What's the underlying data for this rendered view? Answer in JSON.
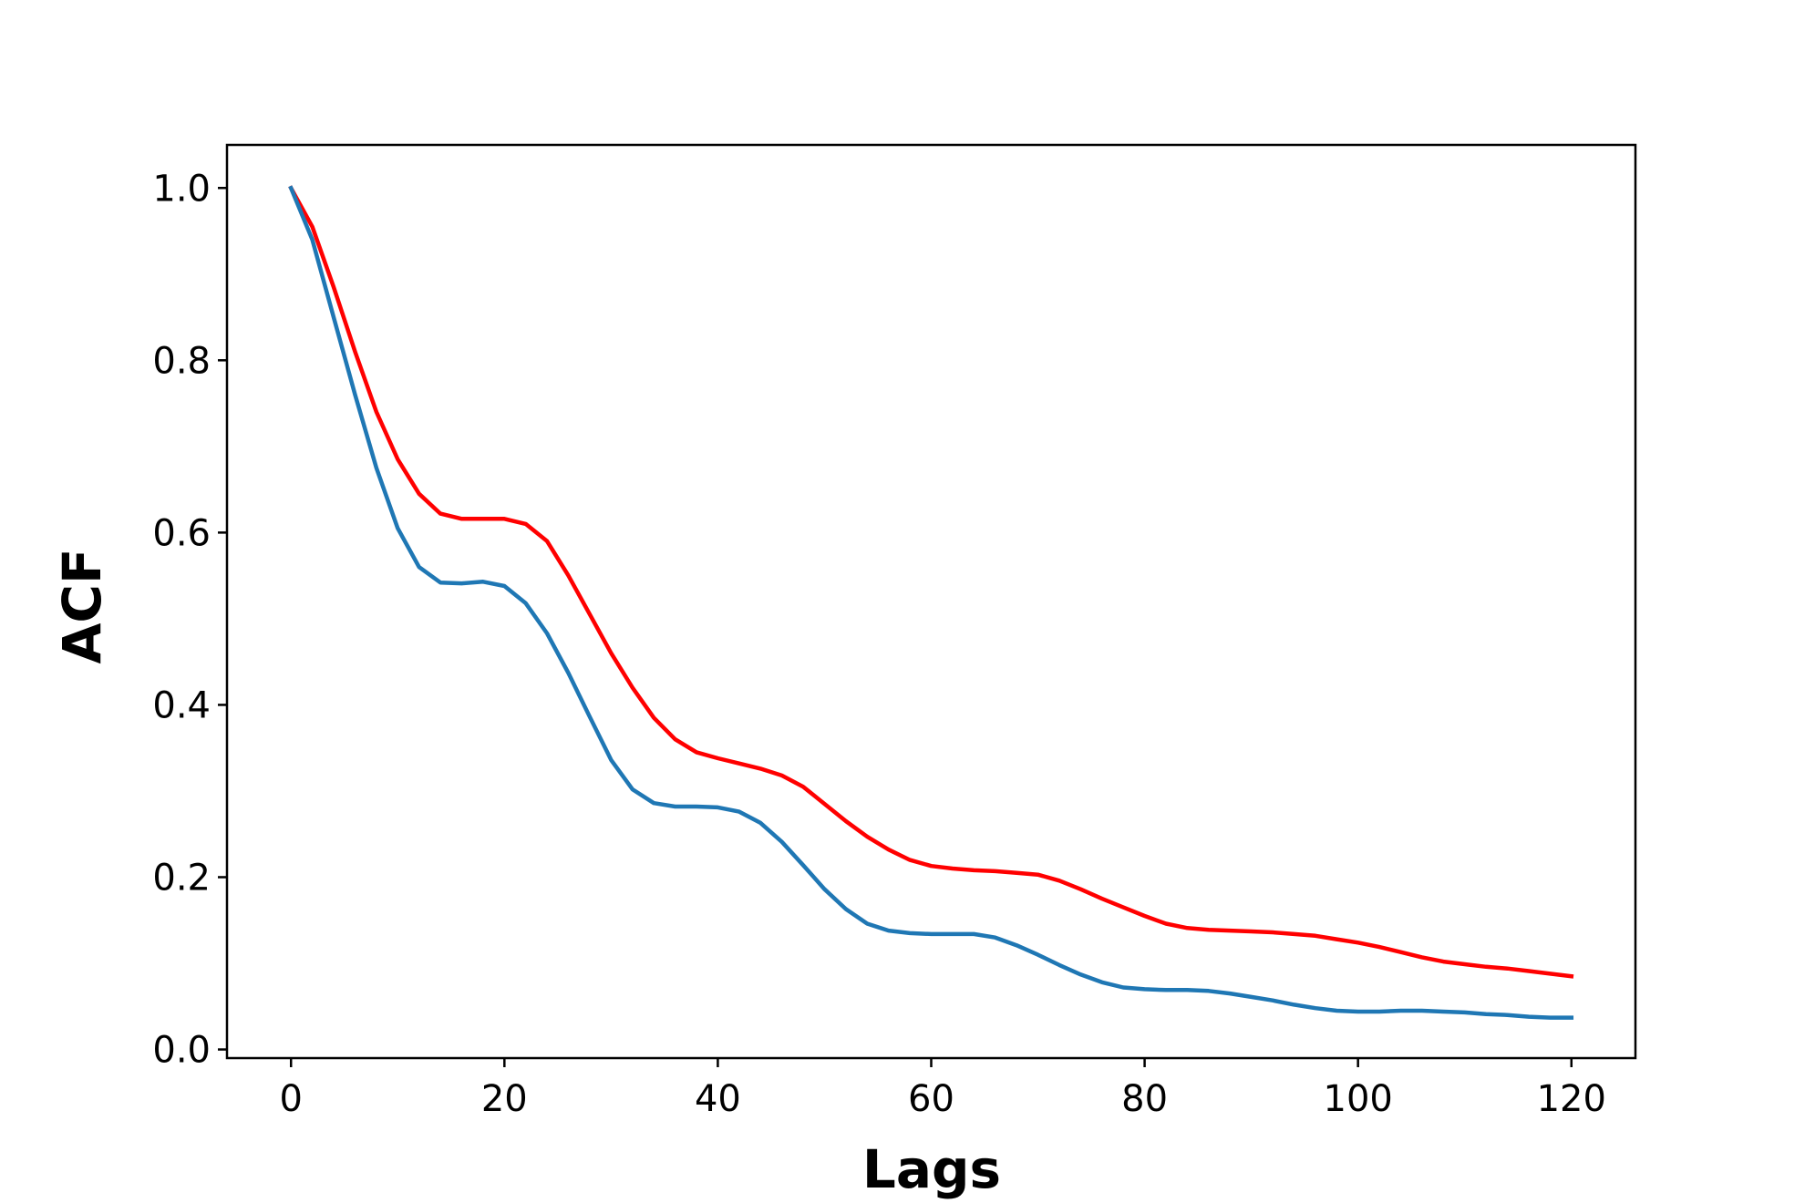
{
  "chart_data": {
    "type": "line",
    "title": "",
    "xlabel": "Lags",
    "ylabel": "ACF",
    "xlim": [
      -6,
      126
    ],
    "ylim": [
      -0.01,
      1.05
    ],
    "xticks": [
      0,
      20,
      40,
      60,
      80,
      100,
      120
    ],
    "xtick_labels": [
      "0",
      "20",
      "40",
      "60",
      "80",
      "100",
      "120"
    ],
    "yticks": [
      0.0,
      0.2,
      0.4,
      0.6,
      0.8,
      1.0
    ],
    "ytick_labels": [
      "0.0",
      "0.2",
      "0.4",
      "0.6",
      "0.8",
      "1.0"
    ],
    "grid": false,
    "legend": "none",
    "series": [
      {
        "color": "#ff0000",
        "x": [
          0,
          2,
          4,
          6,
          8,
          10,
          12,
          14,
          16,
          18,
          20,
          22,
          24,
          26,
          28,
          30,
          32,
          34,
          36,
          38,
          40,
          42,
          44,
          46,
          48,
          50,
          52,
          54,
          56,
          58,
          60,
          62,
          64,
          66,
          68,
          70,
          72,
          74,
          76,
          78,
          80,
          82,
          84,
          86,
          88,
          90,
          92,
          94,
          96,
          98,
          100,
          102,
          104,
          106,
          108,
          110,
          112,
          114,
          116,
          118,
          120
        ],
        "values": [
          1.0,
          0.955,
          0.885,
          0.81,
          0.74,
          0.685,
          0.645,
          0.622,
          0.616,
          0.616,
          0.616,
          0.61,
          0.59,
          0.55,
          0.505,
          0.46,
          0.42,
          0.385,
          0.36,
          0.345,
          0.338,
          0.332,
          0.326,
          0.318,
          0.305,
          0.285,
          0.265,
          0.247,
          0.232,
          0.22,
          0.213,
          0.21,
          0.208,
          0.207,
          0.205,
          0.203,
          0.196,
          0.186,
          0.175,
          0.165,
          0.155,
          0.146,
          0.141,
          0.139,
          0.138,
          0.137,
          0.136,
          0.134,
          0.132,
          0.128,
          0.124,
          0.119,
          0.113,
          0.107,
          0.102,
          0.099,
          0.096,
          0.094,
          0.091,
          0.088,
          0.085
        ]
      },
      {
        "color": "#1f77b4",
        "x": [
          0,
          2,
          4,
          6,
          8,
          10,
          12,
          14,
          16,
          18,
          20,
          22,
          24,
          26,
          28,
          30,
          32,
          34,
          36,
          38,
          40,
          42,
          44,
          46,
          48,
          50,
          52,
          54,
          56,
          58,
          60,
          62,
          64,
          66,
          68,
          70,
          72,
          74,
          76,
          78,
          80,
          82,
          84,
          86,
          88,
          90,
          92,
          94,
          96,
          98,
          100,
          102,
          104,
          106,
          108,
          110,
          112,
          114,
          116,
          118,
          120
        ],
        "values": [
          1.0,
          0.94,
          0.85,
          0.76,
          0.675,
          0.605,
          0.56,
          0.542,
          0.541,
          0.543,
          0.538,
          0.518,
          0.483,
          0.437,
          0.386,
          0.336,
          0.302,
          0.286,
          0.282,
          0.282,
          0.281,
          0.276,
          0.263,
          0.241,
          0.214,
          0.186,
          0.163,
          0.146,
          0.138,
          0.135,
          0.134,
          0.134,
          0.134,
          0.13,
          0.121,
          0.11,
          0.098,
          0.087,
          0.078,
          0.072,
          0.07,
          0.069,
          0.069,
          0.068,
          0.065,
          0.061,
          0.057,
          0.052,
          0.048,
          0.045,
          0.044,
          0.044,
          0.045,
          0.045,
          0.044,
          0.043,
          0.041,
          0.04,
          0.038,
          0.037,
          0.037
        ]
      }
    ]
  }
}
